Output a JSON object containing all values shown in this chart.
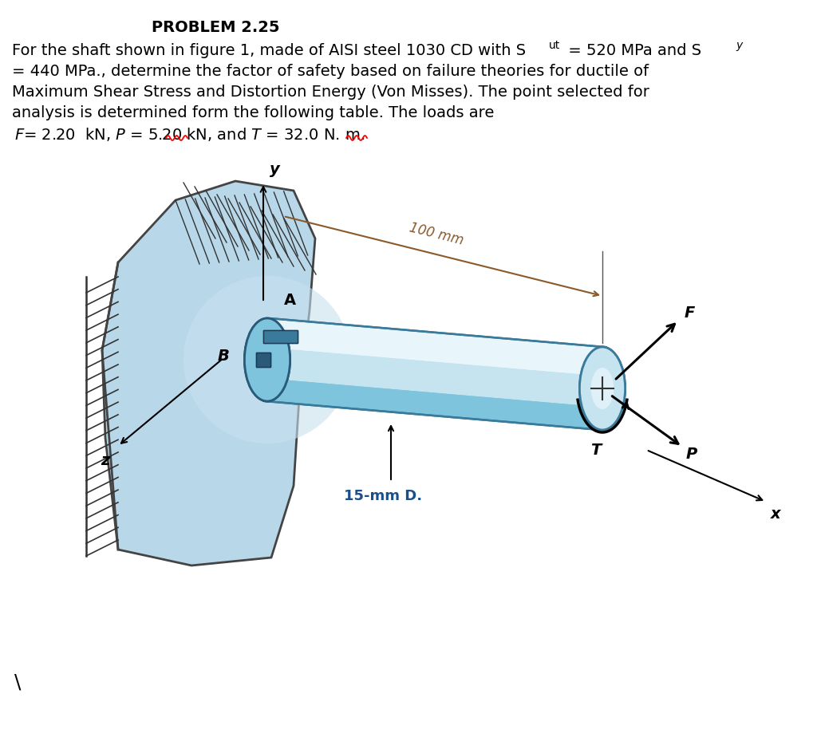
{
  "bg_color": "#ffffff",
  "text_color": "#000000",
  "shaft_light": "#c5e4f0",
  "shaft_mid": "#7dc4dc",
  "shaft_dark": "#4a9ab8",
  "shaft_highlight": "#e8f5fb",
  "wall_fill": "#b8d8ea",
  "wall_edge": "#444444",
  "hatch_color": "#333333",
  "dim_color": "#8B5A2B",
  "label_blue": "#1a4f8a",
  "arrow_color": "#000000",
  "title": "PROBLEM 2.25",
  "line1a": "For the shaft shown in figure 1, made of AISI steel 1030 CD with S",
  "line1b": "ut",
  "line1c": " = 520 MPa and S",
  "line1d": "y",
  "line2": "= 440 MPa., determine the factor of safety based on failure theories for ductile of",
  "line3": "Maximum Shear Stress and Distortion Energy (Von Misses). The point selected for",
  "line4": "analysis is determined form the following table. The loads are",
  "line5": " F= 2.20  kN, P = 5.20 kN, and T = 32.0 N. m.",
  "font_size_main": 14,
  "font_size_sub": 10
}
